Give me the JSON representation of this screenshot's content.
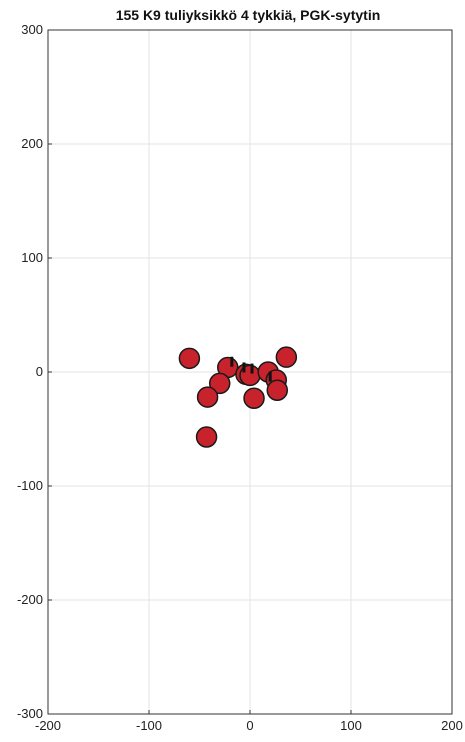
{
  "chart_data": {
    "type": "scatter",
    "title": "155 K9 tuliyksikkö 4 tykkiä, PGK-sytytin",
    "xlabel": "",
    "ylabel": "",
    "xlim": [
      -200,
      200
    ],
    "ylim": [
      -300,
      300
    ],
    "x_ticks": [
      "-200",
      "-100",
      "0",
      "100",
      "200"
    ],
    "y_ticks": [
      "300",
      "200",
      "100",
      "0",
      "-100",
      "-200",
      "-300"
    ],
    "grid": true,
    "marker_color": "#c8232c",
    "marker_edge_color": "#1a1a1a",
    "points": [
      {
        "x": -60,
        "y": 12
      },
      {
        "x": -22,
        "y": 4
      },
      {
        "x": -30,
        "y": -10
      },
      {
        "x": -42,
        "y": -22
      },
      {
        "x": -43,
        "y": -57
      },
      {
        "x": -4,
        "y": -2
      },
      {
        "x": 0,
        "y": -3
      },
      {
        "x": 4,
        "y": -23
      },
      {
        "x": 18,
        "y": 0
      },
      {
        "x": 26,
        "y": -7
      },
      {
        "x": 27,
        "y": -16
      },
      {
        "x": 36,
        "y": 13
      }
    ],
    "tick_marks": [
      {
        "x": -18,
        "y": 9
      },
      {
        "x": -6,
        "y": 4
      },
      {
        "x": 2,
        "y": 3
      },
      {
        "x": 20,
        "y": -4
      }
    ]
  }
}
